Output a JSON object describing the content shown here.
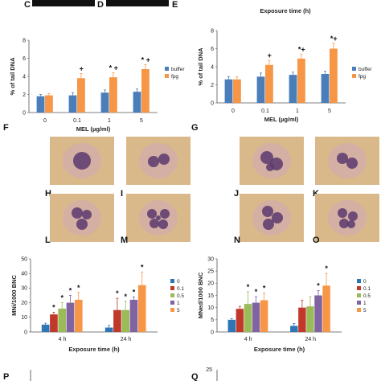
{
  "header": {
    "letters": [
      "C",
      "D",
      "E"
    ],
    "exposure_title": "Exposure time (h)"
  },
  "image_letters": {
    "grid_labels": [
      "F",
      "G"
    ],
    "cells": [
      "H",
      "I",
      "J",
      "K",
      "L",
      "M",
      "N",
      "O"
    ]
  },
  "footer_letters": [
    "P",
    "Q"
  ],
  "footer_tick": "25",
  "colors": {
    "buffer": "#4a7ebb",
    "fpg": "#f79646",
    "c0": "#2e75b6",
    "c01": "#c0392b",
    "c05": "#9bbb59",
    "c1": "#8064a2",
    "c5": "#f79646",
    "cell_bg": "#d9b98a",
    "nucleus": "#5b3a6e"
  },
  "chart_data": [
    {
      "id": "left-top",
      "type": "bar",
      "categories": [
        "0",
        "0.1",
        "1",
        "5"
      ],
      "series": [
        {
          "name": "buffer",
          "values": [
            1.8,
            1.9,
            2.2,
            2.3
          ],
          "errors": [
            0.2,
            0.3,
            0.3,
            0.3
          ]
        },
        {
          "name": "fpg",
          "values": [
            1.9,
            3.8,
            3.9,
            4.8
          ],
          "errors": [
            0.2,
            0.5,
            0.5,
            0.5
          ]
        }
      ],
      "annotations": [
        {
          "category": "0.1",
          "text": "+"
        },
        {
          "category": "1",
          "text": "* +"
        },
        {
          "category": "5",
          "text": "* +"
        }
      ],
      "ylabel": "% of tail DNA",
      "xlabel": "MEL (µg/ml)",
      "ylim": [
        0,
        8
      ],
      "yticks": [
        "0",
        "2",
        "4",
        "6",
        "8"
      ],
      "legend": "right"
    },
    {
      "id": "right-top",
      "type": "bar",
      "categories": [
        "0",
        "0.1",
        "1",
        "5"
      ],
      "series": [
        {
          "name": "buffer",
          "values": [
            2.6,
            2.9,
            3.1,
            3.2
          ],
          "errors": [
            0.3,
            0.4,
            0.3,
            0.3
          ]
        },
        {
          "name": "fpg",
          "values": [
            2.6,
            4.2,
            4.9,
            6.0
          ],
          "errors": [
            0.3,
            0.5,
            0.5,
            0.6
          ]
        }
      ],
      "annotations": [
        {
          "category": "0.1",
          "text": "+"
        },
        {
          "category": "1",
          "text": "*+"
        },
        {
          "category": "5",
          "text": "*+"
        }
      ],
      "ylabel": "% of tail DNA",
      "xlabel": "MEL (µg/ml)",
      "ylim": [
        0,
        8
      ],
      "yticks": [
        "0",
        "2",
        "4",
        "6",
        "8"
      ],
      "legend": "right"
    },
    {
      "id": "left-bottom",
      "type": "bar",
      "categories": [
        "4 h",
        "24 h"
      ],
      "series": [
        {
          "name": "0",
          "values": [
            5,
            3
          ],
          "errors": [
            1,
            1.5
          ]
        },
        {
          "name": "0.1",
          "values": [
            12,
            15
          ],
          "errors": [
            1.5,
            8
          ]
        },
        {
          "name": "0.5",
          "values": [
            16,
            15
          ],
          "errors": [
            4,
            6
          ]
        },
        {
          "name": "1",
          "values": [
            20,
            22
          ],
          "errors": [
            5,
            2
          ]
        },
        {
          "name": "5",
          "values": [
            22,
            32
          ],
          "errors": [
            5,
            9
          ]
        }
      ],
      "annotations": [
        {
          "category": "4 h",
          "series": "0.1",
          "text": "*"
        },
        {
          "category": "4 h",
          "series": "0.5",
          "text": "*"
        },
        {
          "category": "4 h",
          "series": "1",
          "text": "*"
        },
        {
          "category": "4 h",
          "series": "5",
          "text": "*"
        },
        {
          "category": "24 h",
          "series": "0.1",
          "text": "*"
        },
        {
          "category": "24 h",
          "series": "0.5",
          "text": "*"
        },
        {
          "category": "24 h",
          "series": "1",
          "text": "*"
        },
        {
          "category": "24 h",
          "series": "5",
          "text": "*"
        }
      ],
      "ylabel": "MNi/1000 BNC",
      "xlabel": "Exposure time (h)",
      "ylim": [
        0,
        50
      ],
      "yticks": [
        "0",
        "10",
        "20",
        "30",
        "40",
        "50"
      ],
      "legend": "right"
    },
    {
      "id": "right-bottom",
      "type": "bar",
      "categories": [
        "4 h",
        "24 h"
      ],
      "series": [
        {
          "name": "0",
          "values": [
            5,
            2.5
          ],
          "errors": [
            0.5,
            1
          ]
        },
        {
          "name": "0.1",
          "values": [
            9.5,
            10
          ],
          "errors": [
            1,
            3
          ]
        },
        {
          "name": "0.5",
          "values": [
            11.5,
            10.5
          ],
          "errors": [
            5,
            4
          ]
        },
        {
          "name": "1",
          "values": [
            12,
            15
          ],
          "errors": [
            2.5,
            2
          ]
        },
        {
          "name": "5",
          "values": [
            13,
            19
          ],
          "errors": [
            3,
            5
          ]
        }
      ],
      "annotations": [
        {
          "category": "4 h",
          "series": "0.5",
          "text": "*"
        },
        {
          "category": "4 h",
          "series": "1",
          "text": "*"
        },
        {
          "category": "4 h",
          "series": "5",
          "text": "*"
        },
        {
          "category": "24 h",
          "series": "1",
          "text": "*"
        },
        {
          "category": "24 h",
          "series": "5",
          "text": "*"
        }
      ],
      "ylabel": "MNed/1000 BNC",
      "xlabel": "Exposure time (h)",
      "ylim": [
        0,
        30
      ],
      "yticks": [
        "0",
        "5",
        "10",
        "15",
        "20",
        "25",
        "30"
      ],
      "legend": "right"
    }
  ]
}
